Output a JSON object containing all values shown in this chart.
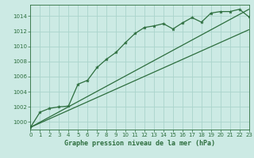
{
  "background_color": "#cceae4",
  "grid_color": "#aad4cc",
  "line_color": "#2d6e3e",
  "xlabel": "Graphe pression niveau de la mer (hPa)",
  "ylim": [
    999.0,
    1015.5
  ],
  "xlim": [
    0,
    23
  ],
  "yticks": [
    1000,
    1002,
    1004,
    1006,
    1008,
    1010,
    1012,
    1014
  ],
  "xticks": [
    0,
    1,
    2,
    3,
    4,
    5,
    6,
    7,
    8,
    9,
    10,
    11,
    12,
    13,
    14,
    15,
    16,
    17,
    18,
    19,
    20,
    21,
    22,
    23
  ],
  "pressure_data": [
    999.3,
    1001.3,
    1001.8,
    1002.0,
    1002.1,
    1005.0,
    1005.5,
    1007.2,
    1008.3,
    1009.2,
    1010.5,
    1011.7,
    1012.5,
    1012.7,
    1013.0,
    1012.3,
    1013.1,
    1013.8,
    1013.2,
    1014.4,
    1014.6,
    1014.6,
    1014.9,
    1013.9
  ],
  "upper_line": [
    999.3,
    1014.9
  ],
  "lower_line": [
    999.3,
    1012.2
  ],
  "title_fontsize": 6,
  "tick_fontsize": 5
}
